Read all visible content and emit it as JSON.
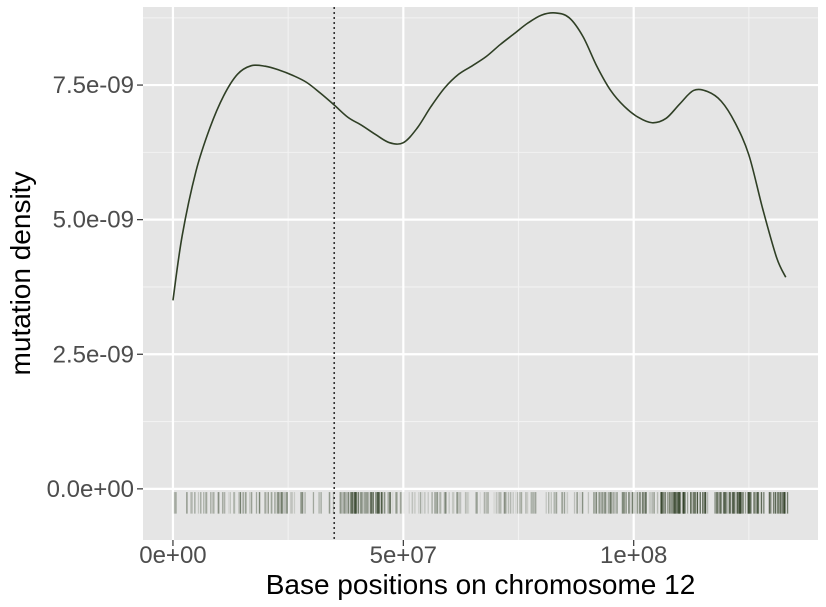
{
  "chart_data": {
    "type": "line",
    "title": "",
    "xlabel": "Base positions on chromosome 12",
    "ylabel": "mutation density",
    "xlim": [
      -6500000,
      140000000
    ],
    "ylim": [
      -9.5e-10,
      8.95e-09
    ],
    "x_ticks": [
      {
        "value": 0,
        "label": "0e+00"
      },
      {
        "value": 50000000,
        "label": "5e+07"
      },
      {
        "value": 100000000,
        "label": "1e+08"
      }
    ],
    "y_ticks": [
      {
        "value": 0,
        "label": "0.0e+00"
      },
      {
        "value": 2.5e-09,
        "label": "2.5e-09"
      },
      {
        "value": 5e-09,
        "label": "5.0e-09"
      },
      {
        "value": 7.5e-09,
        "label": "7.5e-09"
      }
    ],
    "grid": true,
    "colors": {
      "panel": "#e5e5e5",
      "grid_major": "#ffffff",
      "grid_minor": "#f2f2f2",
      "line": "#2f3f25",
      "vline": "#333333"
    },
    "vline": {
      "x": 35000000,
      "style": "dotted"
    },
    "series": [
      {
        "x": [
          0,
          2000000,
          5000000,
          8000000,
          11000000,
          14000000,
          17000000,
          20000000,
          23000000,
          26000000,
          29000000,
          32000000,
          35000000,
          38000000,
          41000000,
          44000000,
          47000000,
          50000000,
          53000000,
          56000000,
          59000000,
          62000000,
          65000000,
          68000000,
          71000000,
          74000000,
          77000000,
          80000000,
          83000000,
          86000000,
          89000000,
          92000000,
          95000000,
          98000000,
          101000000,
          104000000,
          107000000,
          110000000,
          113000000,
          116000000,
          119000000,
          122000000,
          125000000,
          128000000,
          131000000,
          133000000
        ],
        "y": [
          3.5e-09,
          4.7e-09,
          5.9e-09,
          6.7e-09,
          7.3e-09,
          7.7e-09,
          7.86e-09,
          7.85e-09,
          7.78e-09,
          7.68e-09,
          7.55e-09,
          7.35e-09,
          7.13e-09,
          6.9e-09,
          6.75e-09,
          6.58e-09,
          6.43e-09,
          6.43e-09,
          6.7e-09,
          7.1e-09,
          7.45e-09,
          7.7e-09,
          7.86e-09,
          8.03e-09,
          8.25e-09,
          8.45e-09,
          8.65e-09,
          8.8e-09,
          8.84e-09,
          8.75e-09,
          8.4e-09,
          7.85e-09,
          7.4e-09,
          7.1e-09,
          6.9e-09,
          6.8e-09,
          6.88e-09,
          7.15e-09,
          7.4e-09,
          7.38e-09,
          7.2e-09,
          6.8e-09,
          6.2e-09,
          5.2e-09,
          4.3e-09,
          3.93e-09
        ]
      }
    ],
    "rug": {
      "y_top": -6e-11,
      "y_bottom": -4.6e-10,
      "segments": [
        {
          "start": 0,
          "end": 35000000,
          "density": 80,
          "darkness": 0.35
        },
        {
          "start": 36000000,
          "end": 48000000,
          "density": 60,
          "darkness": 0.55
        },
        {
          "start": 48000000,
          "end": 62000000,
          "density": 45,
          "darkness": 0.2
        },
        {
          "start": 62000000,
          "end": 90000000,
          "density": 70,
          "darkness": 0.25
        },
        {
          "start": 90000000,
          "end": 108000000,
          "density": 80,
          "darkness": 0.4
        },
        {
          "start": 108000000,
          "end": 133500000,
          "density": 140,
          "darkness": 0.7
        }
      ]
    }
  }
}
